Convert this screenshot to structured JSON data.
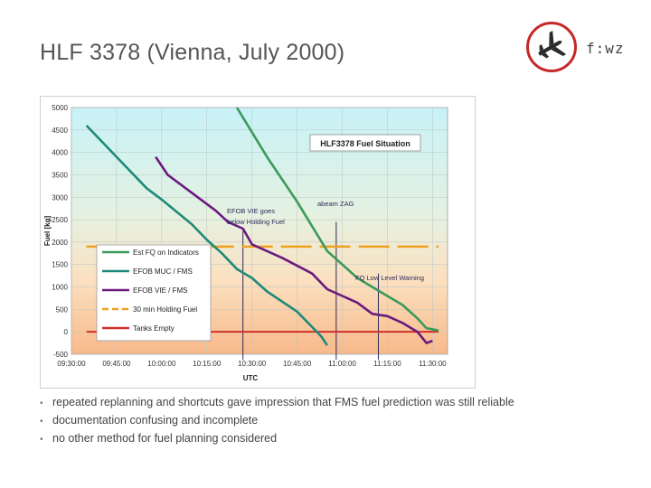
{
  "slide": {
    "title": "HLF 3378 (Vienna, July 2000)",
    "logo_text": "f:wz",
    "bullets": [
      "repeated replanning and shortcuts gave impression that FMS fuel prediction was still reliable",
      "documentation confusing and incomplete",
      "no other method for fuel planning considered"
    ]
  },
  "icons": {
    "logo": "airplane-icon"
  },
  "colors": {
    "est_fq": "#3a9a5b",
    "efob_muc": "#1f8a7a",
    "efob_vie": "#6a1b7e",
    "holding": "#f0a020",
    "tanks_empty": "#d0302a",
    "logo_red": "#c62828"
  },
  "chart_data": {
    "type": "line",
    "title": "HLF3378 Fuel Situation",
    "xlabel": "UTC",
    "ylabel": "Fuel [kg]",
    "x_ticks": [
      "09:30:00",
      "09:45:00",
      "10:00:00",
      "10:15:00",
      "10:30:00",
      "10:45:00",
      "11:00:00",
      "11:15:00",
      "11:30:00"
    ],
    "y_ticks": [
      5000,
      4500,
      4000,
      3500,
      3000,
      2500,
      2000,
      1500,
      1000,
      500,
      0,
      -500
    ],
    "xlim": [
      "09:30:00",
      "11:35:00"
    ],
    "ylim": [
      -500,
      5000
    ],
    "series": [
      {
        "name": "Est FQ on Indicators",
        "color_key": "est_fq",
        "points": [
          [
            "10:25:00",
            5000
          ],
          [
            "10:35:00",
            3900
          ],
          [
            "10:45:00",
            2900
          ],
          [
            "10:55:00",
            1800
          ],
          [
            "11:05:00",
            1200
          ],
          [
            "11:15:00",
            800
          ],
          [
            "11:20:00",
            600
          ],
          [
            "11:25:00",
            300
          ],
          [
            "11:28:00",
            80
          ],
          [
            "11:32:00",
            30
          ]
        ]
      },
      {
        "name": "EFOB MUC / FMS",
        "color_key": "efob_muc",
        "points": [
          [
            "09:35:00",
            4600
          ],
          [
            "09:45:00",
            3900
          ],
          [
            "09:55:00",
            3200
          ],
          [
            "10:00:00",
            2950
          ],
          [
            "10:10:00",
            2400
          ],
          [
            "10:15:00",
            2050
          ],
          [
            "10:20:00",
            1750
          ],
          [
            "10:25:00",
            1400
          ],
          [
            "10:30:00",
            1200
          ],
          [
            "10:35:00",
            900
          ],
          [
            "10:45:00",
            450
          ],
          [
            "10:53:00",
            -100
          ],
          [
            "10:55:00",
            -300
          ]
        ]
      },
      {
        "name": "EFOB VIE / FMS",
        "color_key": "efob_vie",
        "points": [
          [
            "09:58:00",
            3900
          ],
          [
            "10:02:00",
            3500
          ],
          [
            "10:10:00",
            3100
          ],
          [
            "10:18:00",
            2700
          ],
          [
            "10:22:00",
            2450
          ],
          [
            "10:27:00",
            2300
          ],
          [
            "10:30:00",
            1950
          ],
          [
            "10:40:00",
            1650
          ],
          [
            "10:50:00",
            1300
          ],
          [
            "10:55:00",
            950
          ],
          [
            "11:05:00",
            650
          ],
          [
            "11:10:00",
            400
          ],
          [
            "11:15:00",
            350
          ],
          [
            "11:20:00",
            200
          ],
          [
            "11:25:00",
            0
          ],
          [
            "11:28:00",
            -250
          ],
          [
            "11:30:00",
            -200
          ]
        ]
      }
    ],
    "holding_fuel": {
      "name": "30 min Holding Fuel",
      "value": 1900
    },
    "tanks_empty": {
      "name": "Tanks Empty",
      "value": 0
    },
    "annotations": [
      {
        "text_lines": [
          "EFOB VIE goes",
          "below Holding Fuel"
        ],
        "x": "10:27:00"
      },
      {
        "text_lines": [
          "abeam ZAG"
        ],
        "x": "10:58:00"
      },
      {
        "text_lines": [
          "FQ Low Level Warning"
        ],
        "x": "11:12:00"
      }
    ],
    "legend_position": "lower-left",
    "grid": true
  }
}
